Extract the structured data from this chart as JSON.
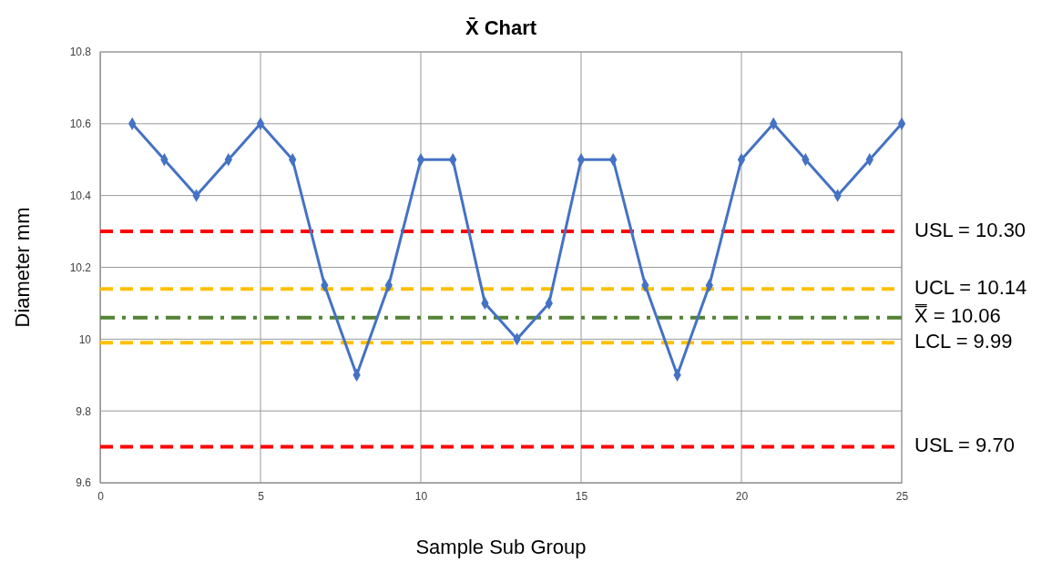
{
  "chart_data": {
    "type": "line",
    "title": "X̄ Chart",
    "xlabel": "Sample Sub Group",
    "ylabel": "Diameter mm",
    "x": [
      1,
      2,
      3,
      4,
      5,
      6,
      7,
      8,
      9,
      10,
      11,
      12,
      13,
      14,
      15,
      16,
      17,
      18,
      19,
      20,
      21,
      22,
      23,
      24,
      25
    ],
    "series": [
      {
        "color": "#4472c4",
        "values": [
          10.6,
          10.5,
          10.4,
          10.5,
          10.6,
          10.5,
          10.15,
          9.9,
          10.15,
          10.5,
          10.5,
          10.1,
          10.0,
          10.1,
          10.5,
          10.5,
          10.15,
          9.9,
          10.15,
          10.5,
          10.6,
          10.5,
          10.4,
          10.5,
          10.6
        ]
      }
    ],
    "xlim": [
      0,
      25
    ],
    "xticks": [
      0,
      5,
      10,
      15,
      20,
      25
    ],
    "ylim": [
      9.6,
      10.8
    ],
    "yticks": [
      9.6,
      9.8,
      {
        "value": 10,
        "label": "10"
      },
      10.2,
      10.4,
      10.6,
      10.8
    ],
    "grid": true,
    "marker": "diamond",
    "line_style": "solid",
    "ref_lines": [
      {
        "axis": "y",
        "value": 10.3,
        "label": "USL = 10.30",
        "color": "#ff0000",
        "line_style": "dashed"
      },
      {
        "axis": "y",
        "value": 10.14,
        "label": "UCL = 10.14",
        "color": "#ffc000",
        "line_style": "dashed"
      },
      {
        "axis": "y",
        "value": 10.06,
        "label": "X̿ = 10.06",
        "color": "#548235",
        "line_style": "dashdot"
      },
      {
        "axis": "y",
        "value": 9.99,
        "label": "LCL = 9.99",
        "color": "#ffc000",
        "line_style": "dashed"
      },
      {
        "axis": "y",
        "value": 9.7,
        "label": "USL = 9.70",
        "color": "#ff0000",
        "line_style": "dashed"
      }
    ]
  }
}
